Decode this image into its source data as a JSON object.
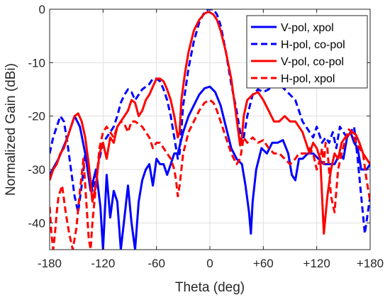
{
  "chart_data": {
    "type": "line",
    "title": "",
    "xlabel": "Theta (deg)",
    "ylabel": "Normalized Gain (dBi)",
    "xlim": [
      -180,
      180
    ],
    "ylim": [
      -45,
      0
    ],
    "xticks": [
      -180,
      -120,
      -60,
      0,
      60,
      120,
      180
    ],
    "xtick_labels": [
      "-180",
      "-120",
      "-60",
      "0",
      "+60",
      "+120",
      "+180"
    ],
    "yticks": [
      0,
      -10,
      -20,
      -30,
      -40
    ],
    "ytick_labels": [
      "0",
      "-10",
      "-20",
      "-30",
      "-40"
    ],
    "grid": true,
    "legend_position": "top-right",
    "series": [
      {
        "name": "V-pol, xpol",
        "color": "#0000FF",
        "style": "solid",
        "x": [
          -180,
          -170,
          -160,
          -152,
          -146,
          -140,
          -134,
          -128,
          -123,
          -120,
          -116,
          -112,
          -108,
          -104,
          -100,
          -96,
          -92,
          -88,
          -84,
          -80,
          -76,
          -72,
          -68,
          -64,
          -60,
          -56,
          -52,
          -48,
          -44,
          -40,
          -36,
          -30,
          -24,
          -18,
          -12,
          -6,
          0,
          6,
          12,
          18,
          24,
          30,
          36,
          40,
          44,
          46,
          48,
          52,
          58,
          64,
          70,
          76,
          82,
          88,
          92,
          96,
          100,
          104,
          110,
          116,
          122,
          128,
          134,
          140,
          146,
          150,
          154,
          158,
          162,
          166,
          170,
          176,
          180
        ],
        "y": [
          -31,
          -28,
          -24,
          -20,
          -22,
          -27,
          -34,
          -30,
          -37,
          -45,
          -31,
          -39,
          -34,
          -36,
          -45,
          -39,
          -33,
          -40,
          -45,
          -36,
          -32,
          -30,
          -29,
          -33,
          -28,
          -29,
          -29,
          -31,
          -29,
          -27,
          -27,
          -23,
          -20,
          -18,
          -16,
          -14.8,
          -14.5,
          -15.5,
          -18,
          -22,
          -26,
          -28,
          -29,
          -33,
          -38,
          -42,
          -36,
          -30,
          -26,
          -27,
          -25,
          -25,
          -24.5,
          -27,
          -31,
          -32,
          -28,
          -28,
          -27,
          -27,
          -28,
          -29,
          -29,
          -29,
          -27,
          -28,
          -24,
          -23,
          -25,
          -26,
          -30,
          -30,
          -29
        ]
      },
      {
        "name": "H-pol, co-pol",
        "color": "#0000FF",
        "style": "dashed",
        "x": [
          -180,
          -176,
          -172,
          -168,
          -164,
          -160,
          -156,
          -152,
          -148,
          -144,
          -140,
          -136,
          -132,
          -128,
          -124,
          -120,
          -116,
          -112,
          -108,
          -104,
          -100,
          -96,
          -92,
          -88,
          -84,
          -80,
          -76,
          -72,
          -68,
          -64,
          -60,
          -56,
          -52,
          -48,
          -44,
          -40,
          -38,
          -36,
          -34,
          -30,
          -24,
          -18,
          -12,
          -6,
          -2,
          0,
          4,
          8,
          12,
          18,
          24,
          30,
          34,
          36,
          38,
          42,
          48,
          54,
          60,
          66,
          72,
          78,
          84,
          90,
          96,
          100,
          104,
          108,
          112,
          116,
          120,
          126,
          130,
          134,
          138,
          142,
          146,
          150,
          154,
          158,
          162,
          166,
          170,
          174,
          180
        ],
        "y": [
          -27,
          -24,
          -22,
          -20,
          -21,
          -25,
          -30,
          -35,
          -38,
          -33,
          -27,
          -30,
          -34,
          -31,
          -28,
          -25,
          -24,
          -23,
          -22,
          -20,
          -17.5,
          -16,
          -15,
          -15.5,
          -17,
          -16,
          -15,
          -14.5,
          -14,
          -13,
          -13,
          -13.5,
          -15,
          -17,
          -20,
          -24,
          -26,
          -28,
          -27,
          -18,
          -11,
          -6,
          -2.5,
          -0.5,
          0,
          0,
          0,
          -1,
          -3,
          -8,
          -14,
          -19,
          -23,
          -25,
          -24,
          -20,
          -16,
          -15,
          -15.5,
          -15,
          -14,
          -14,
          -15,
          -16,
          -17,
          -19,
          -21,
          -22,
          -23,
          -24,
          -22,
          -25,
          -24,
          -25,
          -23,
          -26,
          -22,
          -23,
          -24,
          -23,
          -22,
          -28,
          -35,
          -42,
          -35
        ]
      },
      {
        "name": "V-pol, co-pol",
        "color": "#FF0000",
        "style": "solid",
        "x": [
          -180,
          -176,
          -172,
          -168,
          -164,
          -160,
          -156,
          -152,
          -148,
          -144,
          -140,
          -136,
          -132,
          -128,
          -124,
          -120,
          -116,
          -112,
          -108,
          -104,
          -100,
          -96,
          -92,
          -88,
          -84,
          -80,
          -76,
          -72,
          -68,
          -64,
          -60,
          -56,
          -52,
          -48,
          -44,
          -40,
          -38,
          -36,
          -34,
          -32,
          -28,
          -24,
          -18,
          -12,
          -6,
          -2,
          0,
          4,
          8,
          12,
          18,
          24,
          28,
          32,
          34,
          36,
          38,
          42,
          48,
          54,
          60,
          66,
          72,
          78,
          84,
          90,
          96,
          100,
          104,
          108,
          112,
          116,
          120,
          124,
          128,
          132,
          136,
          140,
          144,
          148,
          152,
          156,
          160,
          164,
          168,
          172,
          176,
          180
        ],
        "y": [
          -32,
          -30,
          -29,
          -27,
          -26,
          -24,
          -22,
          -20,
          -19.5,
          -21,
          -24,
          -29,
          -36,
          -33,
          -27,
          -25,
          -28,
          -24,
          -25,
          -22,
          -21,
          -20,
          -19,
          -17,
          -17.5,
          -20,
          -19,
          -17,
          -16,
          -14.5,
          -13,
          -13,
          -13.5,
          -15,
          -17,
          -20,
          -22,
          -24,
          -23,
          -17,
          -12,
          -8,
          -4,
          -2,
          -0.8,
          -0.5,
          -0.6,
          -1,
          -2,
          -4,
          -8,
          -13,
          -18,
          -23,
          -25.5,
          -24,
          -20,
          -17,
          -16,
          -15.5,
          -17,
          -19,
          -21,
          -21,
          -20,
          -21,
          -21,
          -22,
          -23,
          -25,
          -27,
          -25,
          -26,
          -28,
          -42,
          -35,
          -30,
          -27,
          -28,
          -25,
          -24,
          -23.5,
          -23,
          -23.5,
          -25,
          -27,
          -28,
          -29
        ]
      },
      {
        "name": "H-pol, xpol",
        "color": "#FF0000",
        "style": "dashed",
        "x": [
          -180,
          -178,
          -176,
          -174,
          -172,
          -170,
          -166,
          -162,
          -158,
          -154,
          -150,
          -146,
          -142,
          -138,
          -136,
          -134,
          -132,
          -128,
          -124,
          -120,
          -116,
          -112,
          -108,
          -104,
          -100,
          -96,
          -92,
          -88,
          -84,
          -80,
          -76,
          -72,
          -68,
          -64,
          -60,
          -56,
          -52,
          -48,
          -44,
          -40,
          -38,
          -36,
          -34,
          -30,
          -24,
          -18,
          -12,
          -6,
          0,
          4,
          8,
          12,
          18,
          24,
          30,
          34,
          36,
          38,
          42,
          48,
          54,
          60,
          66,
          72,
          78,
          84,
          90,
          96,
          100,
          104,
          108,
          112,
          116,
          120,
          124,
          126,
          128,
          130,
          132,
          136,
          140,
          144,
          148,
          152,
          156,
          160,
          164,
          168,
          172,
          176,
          180
        ],
        "y": [
          -37,
          -42,
          -45,
          -42,
          -38,
          -35,
          -33,
          -38,
          -42,
          -45,
          -41,
          -34,
          -28,
          -38,
          -43,
          -45,
          -40,
          -33,
          -26,
          -23,
          -22,
          -23,
          -24,
          -22,
          -21,
          -21.5,
          -23,
          -21,
          -21,
          -21.5,
          -22,
          -23,
          -24,
          -26,
          -25,
          -25,
          -26,
          -27,
          -28,
          -30,
          -32,
          -35,
          -33,
          -27,
          -23,
          -21,
          -19,
          -17.5,
          -17,
          -17.5,
          -19,
          -21,
          -24,
          -27,
          -29,
          -28,
          -26,
          -24,
          -25,
          -24,
          -25,
          -24.5,
          -26,
          -27,
          -27,
          -28,
          -29,
          -28,
          -27,
          -27,
          -27,
          -26,
          -27,
          -30,
          -28,
          -26,
          -29,
          -25,
          -26,
          -35,
          -38,
          -30,
          -27,
          -24.5,
          -22.5,
          -23,
          -25,
          -26,
          -27,
          -32,
          -36
        ]
      }
    ]
  }
}
